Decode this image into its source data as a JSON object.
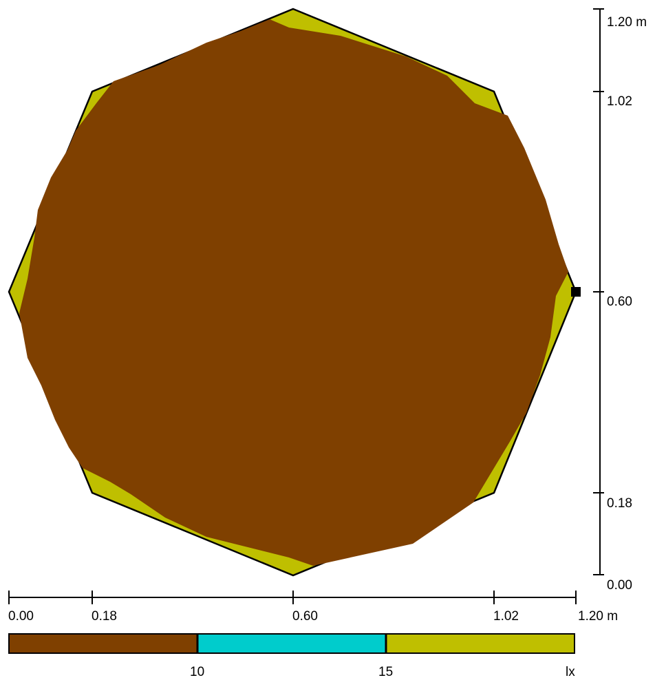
{
  "colors": {
    "background": "#ffffff",
    "zone_low": "#7f4000",
    "zone_mid": "#00cccc",
    "zone_high": "#bfbf00",
    "outline": "#000000"
  },
  "right_axis": {
    "ticks": [
      "0.00",
      "0.18",
      "0.60",
      "1.02"
    ],
    "end_label": "1.20 m"
  },
  "bottom_axis": {
    "ticks": [
      "0.00",
      "0.18",
      "0.60",
      "1.02"
    ],
    "end_label": "1.20 m"
  },
  "legend": {
    "thresholds": [
      "10",
      "15"
    ],
    "unit": "lx"
  },
  "marker": {
    "shape": "square",
    "color": "#000000"
  }
}
